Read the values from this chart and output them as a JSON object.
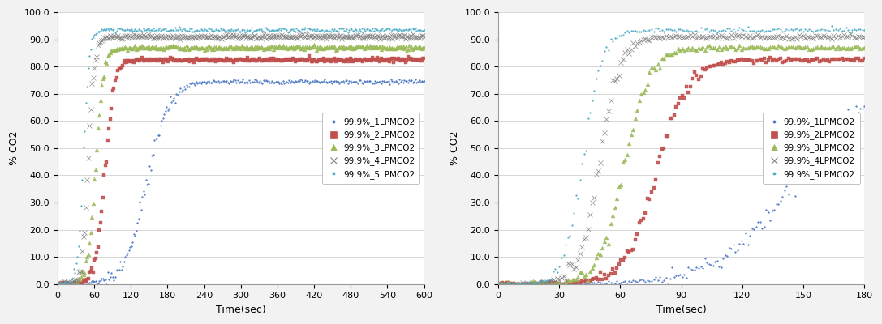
{
  "ylabel": "% CO2",
  "xlabel": "Time(sec)",
  "ylim": [
    0,
    100.0
  ],
  "yticks": [
    0.0,
    10.0,
    20.0,
    30.0,
    40.0,
    50.0,
    60.0,
    70.0,
    80.0,
    90.0,
    100.0
  ],
  "legend_labels": [
    "99.9%_1LPMCO2",
    "99.9%_2LPMCO2",
    "99.9%_3LPMCO2",
    "99.9%_4LPMCO2",
    "99.9%_5LPMCO2"
  ],
  "colors": {
    "1LPM": "#4472c4",
    "2LPM": "#c0504d",
    "3LPM": "#9bbb59",
    "4LPM": "#7f7f7f",
    "5LPM": "#4bacc6"
  },
  "markers": {
    "1LPM": ".",
    "2LPM": "s",
    "3LPM": "^",
    "4LPM": "x",
    "5LPM": "."
  },
  "plot1": {
    "xlim": [
      0,
      600
    ],
    "xticks": [
      0,
      60,
      120,
      180,
      240,
      300,
      360,
      420,
      480,
      540,
      600
    ],
    "series": {
      "1LPM": {
        "bt": 145,
        "k": 0.055,
        "plateau": 74.5
      },
      "2LPM": {
        "bt": 78,
        "k": 0.13,
        "plateau": 82.5
      },
      "3LPM": {
        "bt": 62,
        "k": 0.16,
        "plateau": 87.0
      },
      "4LPM": {
        "bt": 50,
        "k": 0.2,
        "plateau": 91.0
      },
      "5LPM": {
        "bt": 42,
        "k": 0.22,
        "plateau": 93.5
      }
    }
  },
  "plot2": {
    "xlim": [
      0,
      180
    ],
    "xticks": [
      0,
      30,
      60,
      90,
      120,
      150,
      180
    ],
    "series": {
      "1LPM": {
        "bt": 145,
        "k": 0.055,
        "plateau": 74.5
      },
      "2LPM": {
        "bt": 78,
        "k": 0.13,
        "plateau": 82.5
      },
      "3LPM": {
        "bt": 62,
        "k": 0.16,
        "plateau": 87.0
      },
      "4LPM": {
        "bt": 50,
        "k": 0.2,
        "plateau": 91.0
      },
      "5LPM": {
        "bt": 42,
        "k": 0.22,
        "plateau": 93.5
      }
    }
  }
}
